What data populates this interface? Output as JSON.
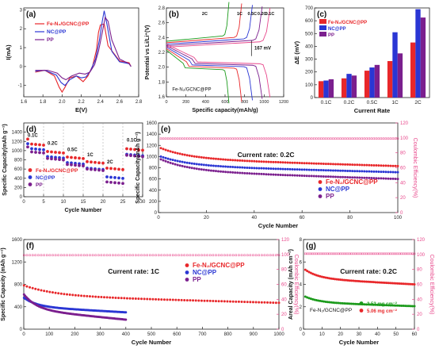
{
  "colors": {
    "fe": "#e8272a",
    "nc": "#2a36d4",
    "pp": "#7b1f8e",
    "ce": "#e8478b",
    "green": "#1a9a1a"
  },
  "chart_data": [
    {
      "panel": "(a)",
      "type": "line",
      "xlabel": "E(V)",
      "ylabel": "I(mA)",
      "xlim": [
        1.6,
        2.8
      ],
      "ylim": [
        -1.6,
        3.1
      ],
      "xticks": [
        "1.6",
        "1.8",
        "2.0",
        "2.2",
        "2.4",
        "2.6",
        "2.8"
      ],
      "yticks": [
        "-1",
        "0",
        "1",
        "2",
        "3"
      ],
      "legend": "top-left",
      "series": [
        {
          "name": "Fe-N₂/GCNC@PP",
          "color": "fe",
          "x": [
            1.72,
            1.82,
            1.92,
            1.97,
            2.0,
            2.03,
            2.08,
            2.15,
            2.22,
            2.27,
            2.32,
            2.36,
            2.38,
            2.4,
            2.44,
            2.48,
            2.6,
            2.7,
            2.72
          ],
          "y": [
            -0.3,
            -0.2,
            -0.5,
            -1.1,
            -1.35,
            -1.1,
            -0.6,
            -0.5,
            -0.8,
            -0.5,
            0.05,
            0.9,
            1.8,
            2.2,
            2.25,
            1.1,
            0.3,
            0.2,
            0.0
          ]
        },
        {
          "name": "NC@PP",
          "color": "nc",
          "x": [
            1.72,
            1.82,
            1.94,
            1.99,
            2.03,
            2.08,
            2.15,
            2.2,
            2.25,
            2.3,
            2.35,
            2.39,
            2.42,
            2.44,
            2.47,
            2.52,
            2.6,
            2.7,
            2.72
          ],
          "y": [
            -0.25,
            -0.2,
            -0.45,
            -0.85,
            -1.0,
            -0.7,
            -0.5,
            -0.6,
            -0.55,
            -0.2,
            0.4,
            1.4,
            2.4,
            2.95,
            2.2,
            0.8,
            0.25,
            0.15,
            0.0
          ]
        },
        {
          "name": "PP",
          "color": "pp",
          "x": [
            1.72,
            1.85,
            1.95,
            2.0,
            2.04,
            2.1,
            2.18,
            2.24,
            2.29,
            2.34,
            2.38,
            2.42,
            2.45,
            2.48,
            2.52,
            2.6,
            2.7,
            2.72
          ],
          "y": [
            -0.2,
            -0.2,
            -0.35,
            -0.6,
            -0.7,
            -0.5,
            -0.35,
            -0.4,
            -0.3,
            0.1,
            0.8,
            1.8,
            2.6,
            2.4,
            1.4,
            0.4,
            0.15,
            0.0
          ]
        }
      ]
    },
    {
      "panel": "(b)",
      "type": "line",
      "xlabel": "Specific capacity(mAh/g)",
      "ylabel": "Potential vs Li/Li⁺(V)",
      "xlim": [
        0,
        1200
      ],
      "ylim": [
        1.6,
        2.8
      ],
      "xticks": [
        "0",
        "200",
        "400",
        "600",
        "800",
        "1000",
        "1200"
      ],
      "yticks": [
        "1.6",
        "1.8",
        "2.0",
        "2.2",
        "2.4",
        "2.6",
        "2.8"
      ],
      "rates": [
        "2C",
        "1C",
        "0.5C",
        "0.2C",
        "0.1C"
      ],
      "rate_colors": [
        "green",
        "fe",
        "nc",
        "pp",
        "ce"
      ],
      "end_caps": [
        640,
        770,
        880,
        980,
        1060
      ],
      "annotation": "167 mV",
      "sample_label": "Fe-N₂/GCNC@PP"
    },
    {
      "panel": "(c)",
      "type": "bar",
      "xlabel": "Current Rate",
      "ylabel": "ΔE (mV)",
      "categories": [
        "0.1C",
        "0.2C",
        "0.5C",
        "1C",
        "2C"
      ],
      "ylim": [
        0,
        700
      ],
      "yticks": [
        "0",
        "100",
        "200",
        "300",
        "400",
        "500",
        "600",
        "700"
      ],
      "legend": "top-left",
      "series": [
        {
          "name": "Fe-N₂/GCNC@PP",
          "color": "fe",
          "values": [
            128,
            150,
            210,
            285,
            430
          ]
        },
        {
          "name": "NC@PP",
          "color": "nc",
          "values": [
            133,
            185,
            235,
            510,
            690
          ]
        },
        {
          "name": "PP",
          "color": "pp",
          "values": [
            143,
            172,
            255,
            345,
            625
          ]
        }
      ]
    },
    {
      "panel": "(d)",
      "type": "scatter",
      "xlabel": "Cycle Number",
      "ylabel": "Specific Capacity(mAh g⁻¹)",
      "xlim": [
        0,
        30
      ],
      "ylim": [
        0,
        1600
      ],
      "xticks": [
        "0",
        "5",
        "10",
        "15",
        "20",
        "25",
        "30"
      ],
      "yticks": [
        "0",
        "200",
        "400",
        "600",
        "800",
        "1000",
        "1200",
        "1400"
      ],
      "rate_labels": [
        "0.1C",
        "0.2C",
        "0.5C",
        "1C",
        "2C",
        "0.1C"
      ],
      "legend": "bottom-left",
      "series": [
        {
          "name": "Fe-N₂/GCNC@PP",
          "color": "fe",
          "levels": [
            1150,
            980,
            860,
            760,
            620,
            1040
          ]
        },
        {
          "name": "NC@PP",
          "color": "nc",
          "levels": [
            1050,
            870,
            740,
            620,
            430,
            920
          ]
        },
        {
          "name": "PP",
          "color": "pp",
          "levels": [
            980,
            830,
            700,
            600,
            320,
            900
          ]
        }
      ]
    },
    {
      "panel": "(e)",
      "type": "scatter",
      "xlabel": "Cycle Number",
      "ylabel": "Specific Capacity(mAh g⁻¹)",
      "y2label": "Coulombic Efficiency(%)",
      "xlim": [
        0,
        100
      ],
      "ylim": [
        0,
        1600
      ],
      "y2lim": [
        0,
        120
      ],
      "xticks": [
        "0",
        "20",
        "40",
        "60",
        "80",
        "100"
      ],
      "yticks": [
        "0",
        "200",
        "400",
        "600",
        "800",
        "1000",
        "1200",
        "1400",
        "1600"
      ],
      "y2ticks": [
        "0",
        "20",
        "40",
        "60",
        "80",
        "100",
        "120"
      ],
      "annotation": "Current rate: 0.2C",
      "legend": "bottom-right",
      "series": [
        {
          "name": "Fe-N₂/GCNC@PP",
          "color": "fe",
          "start": 1150,
          "end": 830
        },
        {
          "name": "NC@PP",
          "color": "nc",
          "start": 1000,
          "end": 720
        },
        {
          "name": "PP",
          "color": "pp",
          "start": 950,
          "end": 600
        }
      ],
      "ce_level": 99
    },
    {
      "panel": "(f)",
      "type": "scatter",
      "xlabel": "Cycle Number",
      "ylabel": "Specific Capacity (mAh g⁻¹)",
      "y2label": "Coulombic Efficiency(%)",
      "xlim": [
        0,
        1000
      ],
      "ylim": [
        0,
        1600
      ],
      "y2lim": [
        0,
        120
      ],
      "xticks": [
        "0",
        "100",
        "200",
        "300",
        "400",
        "500",
        "600",
        "700",
        "800",
        "900",
        "1000"
      ],
      "yticks": [
        "0",
        "400",
        "800",
        "1200",
        "1600"
      ],
      "y2ticks": [
        "0",
        "20",
        "40",
        "60",
        "80",
        "100",
        "120"
      ],
      "annotation": "Current rate: 1C",
      "legend": "top-right",
      "series": [
        {
          "name": "Fe-N₂/GCNC@PP",
          "color": "fe",
          "start": 780,
          "end": 470,
          "until": 1000
        },
        {
          "name": "NC@PP",
          "color": "nc",
          "start": 560,
          "end": 300,
          "until": 400
        },
        {
          "name": "PP",
          "color": "pp",
          "start": 620,
          "end": 170,
          "until": 400
        }
      ],
      "ce_level": 99
    },
    {
      "panel": "(g)",
      "type": "scatter",
      "xlabel": "Cycle Number",
      "ylabel": "Areal Capacity (mAh cm⁻²)",
      "y2label": "Coulombic Efficiency(%)",
      "xlim": [
        0,
        60
      ],
      "ylim": [
        0,
        8
      ],
      "y2lim": [
        0,
        120
      ],
      "xticks": [
        "0",
        "10",
        "20",
        "30",
        "40",
        "50",
        "60"
      ],
      "yticks": [
        "0",
        "2",
        "4",
        "6",
        "8"
      ],
      "y2ticks": [
        "0",
        "20",
        "40",
        "60",
        "80",
        "100",
        "120"
      ],
      "annotation": "Current rate: 0.2C",
      "sample_label": "Fe-N₂/GCNC@PP",
      "legend": "bottom-right",
      "series": [
        {
          "name": "2.53 mg cm⁻²",
          "color": "green",
          "start": 2.9,
          "end": 2.05
        },
        {
          "name": "5.06 mg cm⁻²",
          "color": "fe",
          "start": 5.3,
          "end": 4.0
        }
      ],
      "ce_level": 101
    }
  ]
}
